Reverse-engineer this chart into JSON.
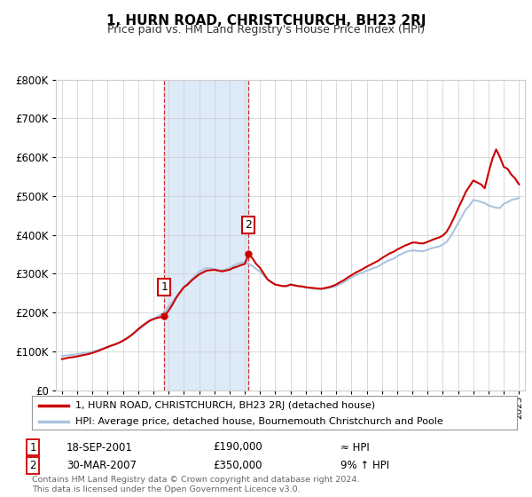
{
  "title": "1, HURN ROAD, CHRISTCHURCH, BH23 2RJ",
  "subtitle": "Price paid vs. HM Land Registry's House Price Index (HPI)",
  "footer_line1": "Contains HM Land Registry data © Crown copyright and database right 2024.",
  "footer_line2": "This data is licensed under the Open Government Licence v3.0.",
  "legend_line1": "1, HURN ROAD, CHRISTCHURCH, BH23 2RJ (detached house)",
  "legend_line2": "HPI: Average price, detached house, Bournemouth Christchurch and Poole",
  "sale1_label": "1",
  "sale1_date": "18-SEP-2001",
  "sale1_price": "£190,000",
  "sale1_vs": "≈ HPI",
  "sale2_label": "2",
  "sale2_date": "30-MAR-2007",
  "sale2_price": "£350,000",
  "sale2_vs": "9% ↑ HPI",
  "hpi_color": "#aac4e0",
  "price_color": "#cc0000",
  "highlight_color": "#ddeaf7",
  "sale1_x": 2001.72,
  "sale2_x": 2007.25,
  "sale1_y": 190000,
  "sale2_y": 350000,
  "ylim": [
    0,
    800000
  ],
  "xlim_start": 1994.6,
  "xlim_end": 2025.4,
  "background_color": "#ffffff",
  "grid_color": "#cccccc",
  "hpi_data_x": [
    1995.0,
    1995.25,
    1995.5,
    1995.75,
    1996.0,
    1996.25,
    1996.5,
    1996.75,
    1997.0,
    1997.25,
    1997.5,
    1997.75,
    1998.0,
    1998.25,
    1998.5,
    1998.75,
    1999.0,
    1999.25,
    1999.5,
    1999.75,
    2000.0,
    2000.25,
    2000.5,
    2000.75,
    2001.0,
    2001.25,
    2001.5,
    2001.75,
    2002.0,
    2002.25,
    2002.5,
    2002.75,
    2003.0,
    2003.25,
    2003.5,
    2003.75,
    2004.0,
    2004.25,
    2004.5,
    2004.75,
    2005.0,
    2005.25,
    2005.5,
    2005.75,
    2006.0,
    2006.25,
    2006.5,
    2006.75,
    2007.0,
    2007.25,
    2007.5,
    2007.75,
    2008.0,
    2008.25,
    2008.5,
    2008.75,
    2009.0,
    2009.25,
    2009.5,
    2009.75,
    2010.0,
    2010.25,
    2010.5,
    2010.75,
    2011.0,
    2011.25,
    2011.5,
    2011.75,
    2012.0,
    2012.25,
    2012.5,
    2012.75,
    2013.0,
    2013.25,
    2013.5,
    2013.75,
    2014.0,
    2014.25,
    2014.5,
    2014.75,
    2015.0,
    2015.25,
    2015.5,
    2015.75,
    2016.0,
    2016.25,
    2016.5,
    2016.75,
    2017.0,
    2017.25,
    2017.5,
    2017.75,
    2018.0,
    2018.25,
    2018.5,
    2018.75,
    2019.0,
    2019.25,
    2019.5,
    2019.75,
    2020.0,
    2020.25,
    2020.5,
    2020.75,
    2021.0,
    2021.25,
    2021.5,
    2021.75,
    2022.0,
    2022.25,
    2022.5,
    2022.75,
    2023.0,
    2023.25,
    2023.5,
    2023.75,
    2024.0,
    2024.25,
    2024.5,
    2024.75,
    2025.0
  ],
  "hpi_data_y": [
    88000,
    89000,
    90000,
    91000,
    93000,
    94000,
    96000,
    97000,
    99000,
    102000,
    105000,
    108000,
    111000,
    114000,
    118000,
    123000,
    128000,
    134000,
    140000,
    147000,
    155000,
    162000,
    170000,
    177000,
    183000,
    189000,
    195000,
    202000,
    215000,
    227000,
    240000,
    252000,
    265000,
    275000,
    285000,
    295000,
    305000,
    310000,
    315000,
    314000,
    312000,
    310000,
    308000,
    311000,
    315000,
    320000,
    325000,
    328000,
    330000,
    325000,
    320000,
    312000,
    305000,
    295000,
    285000,
    278000,
    272000,
    269000,
    268000,
    268000,
    272000,
    270000,
    268000,
    267000,
    265000,
    263000,
    262000,
    261000,
    260000,
    261000,
    263000,
    265000,
    268000,
    273000,
    278000,
    284000,
    290000,
    295000,
    300000,
    303000,
    308000,
    311000,
    315000,
    318000,
    325000,
    330000,
    335000,
    338000,
    345000,
    350000,
    355000,
    358000,
    360000,
    359000,
    358000,
    358000,
    362000,
    365000,
    368000,
    370000,
    375000,
    382000,
    395000,
    412000,
    430000,
    447000,
    465000,
    475000,
    490000,
    488000,
    485000,
    482000,
    475000,
    473000,
    470000,
    469000,
    480000,
    484000,
    490000,
    492000,
    495000
  ],
  "price_data_x": [
    1995.0,
    1995.25,
    1995.5,
    1995.75,
    1996.0,
    1996.25,
    1996.5,
    1996.75,
    1997.0,
    1997.25,
    1997.5,
    1997.75,
    1998.0,
    1998.25,
    1998.5,
    1998.75,
    1999.0,
    1999.25,
    1999.5,
    1999.75,
    2000.0,
    2000.25,
    2000.5,
    2000.75,
    2001.0,
    2001.25,
    2001.5,
    2001.72,
    2002.0,
    2002.25,
    2002.5,
    2002.75,
    2003.0,
    2003.25,
    2003.5,
    2003.75,
    2004.0,
    2004.25,
    2004.5,
    2004.75,
    2005.0,
    2005.25,
    2005.5,
    2005.75,
    2006.0,
    2006.25,
    2006.5,
    2006.75,
    2007.0,
    2007.25,
    2007.5,
    2007.75,
    2008.0,
    2008.25,
    2008.5,
    2008.75,
    2009.0,
    2009.25,
    2009.5,
    2009.75,
    2010.0,
    2010.25,
    2010.5,
    2010.75,
    2011.0,
    2011.25,
    2011.5,
    2011.75,
    2012.0,
    2012.25,
    2012.5,
    2012.75,
    2013.0,
    2013.25,
    2013.5,
    2013.75,
    2014.0,
    2014.25,
    2014.5,
    2014.75,
    2015.0,
    2015.25,
    2015.5,
    2015.75,
    2016.0,
    2016.25,
    2016.5,
    2016.75,
    2017.0,
    2017.25,
    2017.5,
    2017.75,
    2018.0,
    2018.25,
    2018.5,
    2018.75,
    2019.0,
    2019.25,
    2019.5,
    2019.75,
    2020.0,
    2020.25,
    2020.5,
    2020.75,
    2021.0,
    2021.25,
    2021.5,
    2021.75,
    2022.0,
    2022.25,
    2022.5,
    2022.75,
    2023.0,
    2023.25,
    2023.5,
    2023.75,
    2024.0,
    2024.25,
    2024.5,
    2024.75,
    2025.0
  ],
  "price_data_y": [
    80000,
    82000,
    84000,
    85000,
    87000,
    89000,
    91000,
    93000,
    96000,
    99000,
    103000,
    107000,
    111000,
    115000,
    118000,
    122000,
    127000,
    133000,
    140000,
    148000,
    157000,
    165000,
    172000,
    179000,
    183000,
    186000,
    188000,
    190000,
    205000,
    220000,
    238000,
    252000,
    265000,
    272000,
    282000,
    290000,
    298000,
    303000,
    308000,
    309000,
    310000,
    308000,
    306000,
    308000,
    310000,
    315000,
    318000,
    322000,
    325000,
    350000,
    340000,
    325000,
    315000,
    300000,
    285000,
    278000,
    272000,
    270000,
    268000,
    268000,
    272000,
    270000,
    268000,
    267000,
    265000,
    264000,
    263000,
    262000,
    261000,
    263000,
    265000,
    268000,
    272000,
    278000,
    283000,
    290000,
    296000,
    302000,
    307000,
    312000,
    318000,
    323000,
    328000,
    333000,
    340000,
    346000,
    352000,
    356000,
    362000,
    367000,
    372000,
    376000,
    380000,
    380000,
    378000,
    378000,
    382000,
    386000,
    390000,
    393000,
    398000,
    408000,
    425000,
    445000,
    468000,
    488000,
    510000,
    525000,
    540000,
    535000,
    530000,
    520000,
    560000,
    595000,
    620000,
    600000,
    575000,
    570000,
    555000,
    545000,
    530000
  ]
}
